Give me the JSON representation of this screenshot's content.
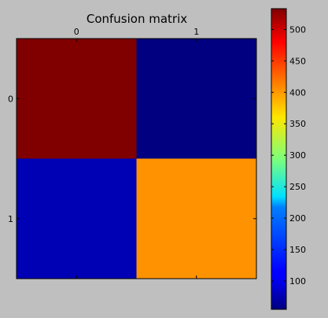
{
  "chart_data": {
    "type": "heatmap",
    "title": "Confusion matrix",
    "x_categories": [
      "0",
      "1"
    ],
    "y_categories": [
      "0",
      "1"
    ],
    "x_axis_position": "top",
    "values": [
      [
        533,
        55
      ],
      [
        80,
        405
      ]
    ],
    "colormap": "jet",
    "colorbar": {
      "position": "right",
      "min": 55,
      "max": 533,
      "ticks": [
        "100",
        "150",
        "200",
        "250",
        "300",
        "350",
        "400",
        "450",
        "500"
      ]
    },
    "grid": false
  },
  "background_color": "#bfbfbf"
}
